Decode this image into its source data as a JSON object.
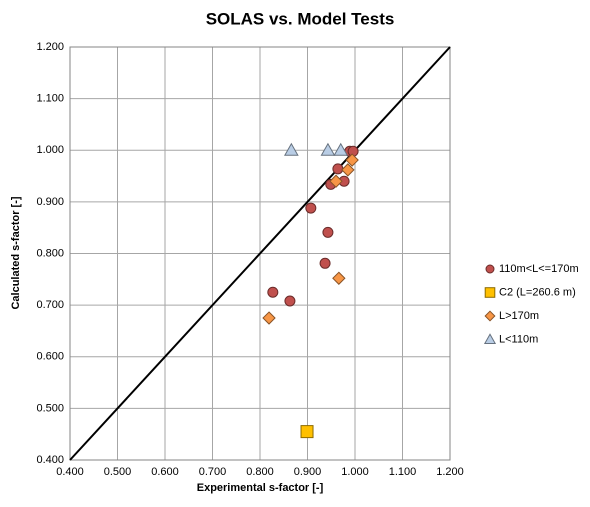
{
  "chart_data": {
    "type": "scatter",
    "title": "SOLAS vs. Model Tests",
    "x_label": "Experimental s-factor [-]",
    "y_label": "Calculated s-factor [-]",
    "xlim": [
      0.4,
      1.2
    ],
    "ylim": [
      0.4,
      1.2
    ],
    "xticks": [
      {
        "value": 0.4,
        "label": "0.400"
      },
      {
        "value": 0.5,
        "label": "0.500"
      },
      {
        "value": 0.6,
        "label": "0.600"
      },
      {
        "value": 0.7,
        "label": "0.700"
      },
      {
        "value": 0.8,
        "label": "0.800"
      },
      {
        "value": 0.9,
        "label": "0.900"
      },
      {
        "value": 1.0,
        "label": "1.000"
      },
      {
        "value": 1.1,
        "label": "1.100"
      },
      {
        "value": 1.2,
        "label": "1.200"
      }
    ],
    "yticks": [
      {
        "value": 0.4,
        "label": "0.400"
      },
      {
        "value": 0.5,
        "label": "0.500"
      },
      {
        "value": 0.6,
        "label": "0.600"
      },
      {
        "value": 0.7,
        "label": "0.700"
      },
      {
        "value": 0.8,
        "label": "0.800"
      },
      {
        "value": 0.9,
        "label": "0.900"
      },
      {
        "value": 1.0,
        "label": "1.000"
      },
      {
        "value": 1.1,
        "label": "1.100"
      },
      {
        "value": 1.2,
        "label": "1.200"
      }
    ],
    "grid": true,
    "legend": "right",
    "series": [
      {
        "name": "110m<L<=170m",
        "marker": "circle",
        "color": "#c0504d",
        "x": [
          0.827,
          0.863,
          0.907,
          0.937,
          0.943,
          0.949,
          0.964,
          0.977,
          0.989,
          0.996
        ],
        "values": [
          0.725,
          0.708,
          0.888,
          0.781,
          0.841,
          0.934,
          0.964,
          0.94,
          0.998,
          0.998
        ]
      },
      {
        "name": "C2 (L=260.6 m)",
        "marker": "square",
        "color": "#ffc000",
        "x": [
          0.899
        ],
        "values": [
          0.455
        ]
      },
      {
        "name": "L>170m",
        "marker": "diamond",
        "color": "#f79646",
        "x": [
          0.819,
          0.96,
          0.966,
          0.985,
          0.994
        ],
        "values": [
          0.675,
          0.94,
          0.752,
          0.962,
          0.981
        ]
      },
      {
        "name": "L<110m",
        "marker": "triangle",
        "color": "#b9cde5",
        "x": [
          0.866,
          0.943,
          0.97
        ],
        "values": [
          1.0,
          1.0,
          1.0
        ]
      }
    ]
  }
}
